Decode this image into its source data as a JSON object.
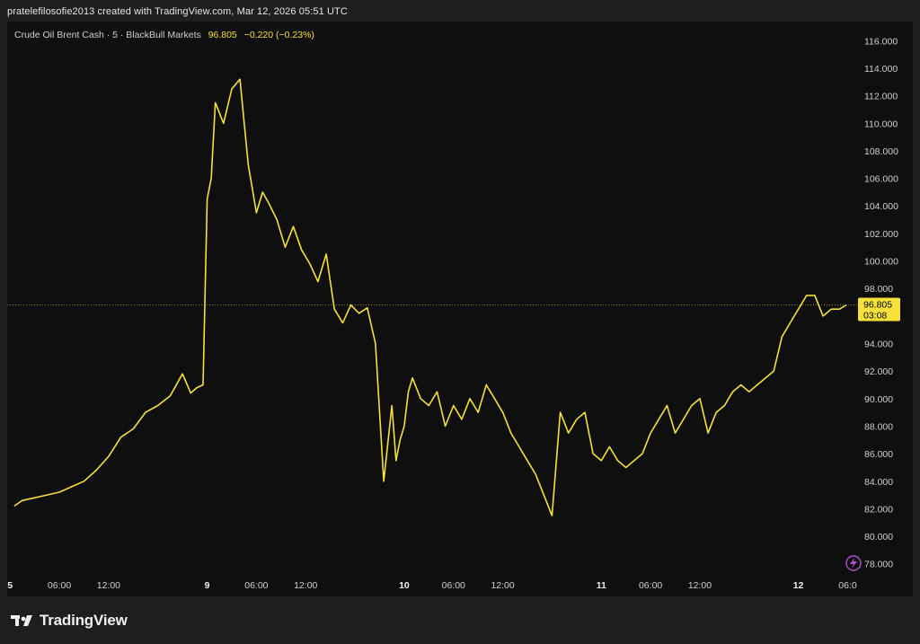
{
  "header": {
    "attribution": "pratelefilosofie2013 created with TradingView.com, Mar 12, 2026 05:51 UTC"
  },
  "legend": {
    "symbol": "Crude Oil Brent Cash · 5 · BlackBull Markets",
    "price": "96.805",
    "change": "−0.220 (−0.23%)"
  },
  "price_badge": {
    "price": "96.805",
    "countdown": "03:08"
  },
  "footer": {
    "brand": "TradingView"
  },
  "colors": {
    "line": "#f5e13a",
    "background": "#0f0f0f",
    "frame": "#1e1e1e",
    "axis_text": "#d1d1d1",
    "price_line": "#f5e13a",
    "bolt_icon": "#b44fd3"
  },
  "icons": {
    "lightning": "lightning-bolt-icon",
    "logo": "tradingview-logo-icon"
  },
  "chart_data": {
    "type": "line",
    "x_tick_labels": [
      "5",
      "06:00",
      "12:00",
      "9",
      "06:00",
      "12:00",
      "10",
      "06:00",
      "12:00",
      "11",
      "06:00",
      "12:00",
      "12",
      "06:0"
    ],
    "y_tick_labels": [
      "78.000",
      "80.000",
      "82.000",
      "84.000",
      "86.000",
      "88.000",
      "90.000",
      "92.000",
      "94.000",
      "96.000",
      "98.000",
      "100.000",
      "102.000",
      "104.000",
      "106.000",
      "108.000",
      "110.000",
      "112.000",
      "114.000",
      "116.000"
    ],
    "y_ticks": [
      78,
      80,
      82,
      84,
      86,
      88,
      90,
      92,
      94,
      96,
      98,
      100,
      102,
      104,
      106,
      108,
      110,
      112,
      114,
      116
    ],
    "ylim": [
      77.2,
      117.0
    ],
    "last_price": 96.805,
    "x": [
      "Mar 5 00:30",
      "Mar 5 01:30",
      "Mar 5 03:00",
      "Mar 5 04:30",
      "Mar 5 06:00",
      "Mar 5 07:30",
      "Mar 5 09:00",
      "Mar 5 10:30",
      "Mar 5 12:00",
      "Mar 5 13:30",
      "Mar 5 15:00",
      "Mar 5 16:30",
      "Mar 5 18:00",
      "Mar 5 19:30",
      "Mar 5 21:00",
      "Mar 5 22:00",
      "Mar 5 22:45",
      "Mar 5 23:30",
      "Mar 9 00:00",
      "Mar 9 00:30",
      "Mar 9 01:00",
      "Mar 9 02:00",
      "Mar 9 03:00",
      "Mar 9 04:00",
      "Mar 9 05:00",
      "Mar 9 06:00",
      "Mar 9 06:45",
      "Mar 9 07:30",
      "Mar 9 08:30",
      "Mar 9 09:30",
      "Mar 9 10:30",
      "Mar 9 11:30",
      "Mar 9 12:30",
      "Mar 9 13:30",
      "Mar 9 14:30",
      "Mar 9 15:30",
      "Mar 9 16:30",
      "Mar 9 17:30",
      "Mar 9 18:30",
      "Mar 9 19:30",
      "Mar 9 20:30",
      "Mar 9 21:30",
      "Mar 9 22:30",
      "Mar 9 23:00",
      "Mar 9 23:30",
      "Mar 10 00:00",
      "Mar 10 00:30",
      "Mar 10 01:00",
      "Mar 10 02:00",
      "Mar 10 03:00",
      "Mar 10 04:00",
      "Mar 10 05:00",
      "Mar 10 06:00",
      "Mar 10 07:00",
      "Mar 10 08:00",
      "Mar 10 09:00",
      "Mar 10 10:00",
      "Mar 10 11:00",
      "Mar 10 12:00",
      "Mar 10 13:00",
      "Mar 10 14:00",
      "Mar 10 15:00",
      "Mar 10 16:00",
      "Mar 10 17:00",
      "Mar 10 18:00",
      "Mar 10 19:00",
      "Mar 10 20:00",
      "Mar 10 21:00",
      "Mar 10 22:00",
      "Mar 10 23:00",
      "Mar 11 00:00",
      "Mar 11 01:00",
      "Mar 11 02:00",
      "Mar 11 03:00",
      "Mar 11 04:00",
      "Mar 11 05:00",
      "Mar 11 06:00",
      "Mar 11 07:00",
      "Mar 11 08:00",
      "Mar 11 09:00",
      "Mar 11 10:00",
      "Mar 11 11:00",
      "Mar 11 12:00",
      "Mar 11 13:00",
      "Mar 11 14:00",
      "Mar 11 15:00",
      "Mar 11 16:00",
      "Mar 11 17:00",
      "Mar 11 18:00",
      "Mar 11 19:00",
      "Mar 11 20:00",
      "Mar 11 21:00",
      "Mar 11 22:00",
      "Mar 11 23:00",
      "Mar 12 00:00",
      "Mar 12 01:00",
      "Mar 12 02:00",
      "Mar 12 03:00",
      "Mar 12 04:00",
      "Mar 12 05:00",
      "Mar 12 05:51"
    ],
    "series": [
      {
        "values": [
          82.2,
          82.6,
          82.8,
          83.0,
          83.2,
          83.6,
          84.0,
          84.8,
          85.8,
          87.2,
          87.8,
          89.0,
          89.5,
          90.2,
          91.8,
          90.4,
          90.8,
          91.0,
          104.5,
          106.0,
          111.5,
          110.0,
          112.5,
          113.2,
          107.0,
          103.5,
          105.0,
          104.2,
          103.0,
          101.0,
          102.5,
          100.8,
          99.8,
          98.5,
          100.5,
          96.5,
          95.5,
          96.8,
          96.2,
          96.6,
          94.0,
          84.0,
          89.5,
          85.5,
          87.0,
          88.0,
          90.5,
          91.5,
          90.0,
          89.5,
          90.5,
          88.0,
          89.5,
          88.5,
          90.0,
          89.0,
          91.0,
          90.0,
          89.0,
          87.5,
          86.5,
          85.5,
          84.5,
          83.0,
          81.5,
          89.0,
          87.5,
          88.5,
          89.0,
          86.0,
          85.5,
          86.5,
          85.5,
          85.0,
          85.5,
          86.0,
          87.5,
          88.5,
          89.5,
          87.5,
          88.5,
          89.5,
          90.0,
          87.5,
          89.0,
          89.5,
          90.5,
          91.0,
          90.5,
          91.0,
          91.5,
          92.0,
          94.5,
          95.5,
          96.5,
          97.5,
          97.5,
          96.0,
          96.5,
          96.5,
          96.805
        ]
      }
    ]
  }
}
